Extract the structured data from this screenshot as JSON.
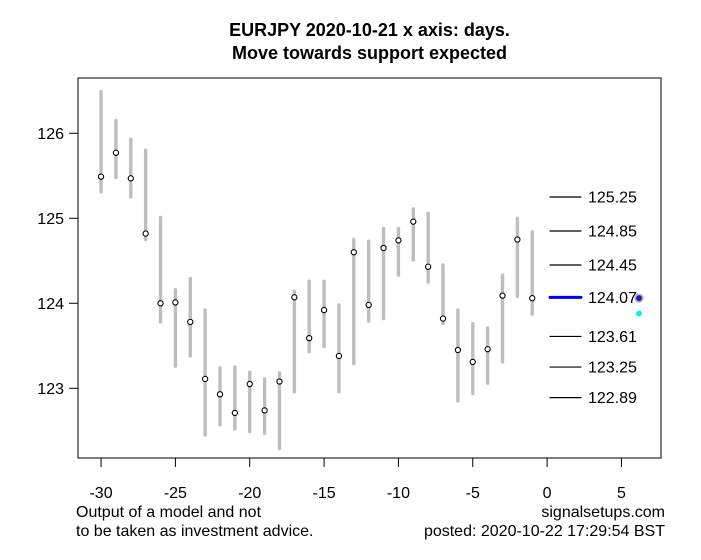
{
  "chart_data": {
    "type": "scatter",
    "subtype": "error-bar-forecast",
    "title_line1": "EURJPY 2020-10-21 x axis: days.",
    "title_line2": "Move towards support expected",
    "x_ticks": [
      -30,
      -25,
      -20,
      -15,
      -10,
      -5,
      0,
      5
    ],
    "y_ticks": [
      123,
      124,
      125,
      126
    ],
    "xlim": [
      -31.55,
      7.66
    ],
    "ylim": [
      122.18,
      126.65
    ],
    "grid": false,
    "legend": "none",
    "series": [
      {
        "day": -30,
        "mid": 125.49,
        "low": 125.31,
        "high": 126.49
      },
      {
        "day": -29,
        "mid": 125.77,
        "low": 125.48,
        "high": 126.15
      },
      {
        "day": -28,
        "mid": 125.47,
        "low": 125.25,
        "high": 125.93
      },
      {
        "day": -27,
        "mid": 124.82,
        "low": 124.75,
        "high": 125.8
      },
      {
        "day": -26,
        "mid": 124.0,
        "low": 123.78,
        "high": 125.01
      },
      {
        "day": -25,
        "mid": 124.01,
        "low": 123.26,
        "high": 124.16
      },
      {
        "day": -24,
        "mid": 123.78,
        "low": 123.38,
        "high": 124.29
      },
      {
        "day": -23,
        "mid": 123.11,
        "low": 122.45,
        "high": 123.92
      },
      {
        "day": -22,
        "mid": 122.93,
        "low": 122.57,
        "high": 123.24
      },
      {
        "day": -21,
        "mid": 122.71,
        "low": 122.52,
        "high": 123.25
      },
      {
        "day": -20,
        "mid": 123.05,
        "low": 122.49,
        "high": 123.19
      },
      {
        "day": -19,
        "mid": 122.74,
        "low": 122.47,
        "high": 123.11
      },
      {
        "day": -18,
        "mid": 123.08,
        "low": 122.29,
        "high": 123.18
      },
      {
        "day": -17,
        "mid": 124.07,
        "low": 122.96,
        "high": 124.14
      },
      {
        "day": -16,
        "mid": 123.59,
        "low": 123.43,
        "high": 124.26
      },
      {
        "day": -15,
        "mid": 123.92,
        "low": 123.49,
        "high": 124.26
      },
      {
        "day": -14,
        "mid": 123.38,
        "low": 122.96,
        "high": 123.98
      },
      {
        "day": -13,
        "mid": 124.6,
        "low": 123.29,
        "high": 124.75
      },
      {
        "day": -12,
        "mid": 123.98,
        "low": 123.79,
        "high": 124.73
      },
      {
        "day": -11,
        "mid": 124.65,
        "low": 123.82,
        "high": 124.88
      },
      {
        "day": -10,
        "mid": 124.74,
        "low": 124.33,
        "high": 124.88
      },
      {
        "day": -9,
        "mid": 124.96,
        "low": 124.51,
        "high": 125.11
      },
      {
        "day": -8,
        "mid": 124.43,
        "low": 124.25,
        "high": 125.06
      },
      {
        "day": -7,
        "mid": 123.82,
        "low": 123.76,
        "high": 124.45
      },
      {
        "day": -6,
        "mid": 123.45,
        "low": 122.85,
        "high": 123.92
      },
      {
        "day": -5,
        "mid": 123.31,
        "low": 122.94,
        "high": 123.76
      },
      {
        "day": -4,
        "mid": 123.46,
        "low": 123.06,
        "high": 123.71
      },
      {
        "day": -3,
        "mid": 124.09,
        "low": 123.31,
        "high": 124.33
      },
      {
        "day": -2,
        "mid": 124.75,
        "low": 124.08,
        "high": 125.0
      },
      {
        "day": -1,
        "mid": 124.06,
        "low": 123.87,
        "high": 124.84
      }
    ],
    "levels": [
      {
        "value": 125.25,
        "label": "125.25",
        "color": "#000000",
        "width": 1.2
      },
      {
        "value": 124.85,
        "label": "124.85",
        "color": "#000000",
        "width": 1.2
      },
      {
        "value": 124.45,
        "label": "124.45",
        "color": "#000000",
        "width": 1.2
      },
      {
        "value": 124.07,
        "label": "124.07",
        "color": "#0000ee",
        "width": 3
      },
      {
        "value": 123.61,
        "label": "123.61",
        "color": "#000000",
        "width": 1.2
      },
      {
        "value": 123.25,
        "label": "123.25",
        "color": "#000000",
        "width": 1.2
      },
      {
        "value": 122.89,
        "label": "122.89",
        "color": "#000000",
        "width": 1.2
      }
    ],
    "markers": [
      {
        "value": 124.06,
        "color": "#1a1acd",
        "ring": "#b0b0b0",
        "name": "blue-forecast-dot"
      },
      {
        "value": 123.88,
        "color": "#00eeee",
        "ring": null,
        "name": "cyan-forecast-dot"
      }
    ],
    "colors": {
      "bar": "#bebebe",
      "point_stroke": "#000000",
      "point_fill": "#ffffff",
      "axis": "#000000",
      "support_line": "#0000ee"
    }
  },
  "footer": {
    "disclaimer_line1": "Output of a model and not",
    "disclaimer_line2": "to be taken as investment advice.",
    "site": "signalsetups.com",
    "posted": "posted: 2020-10-22 17:29:54 BST"
  }
}
